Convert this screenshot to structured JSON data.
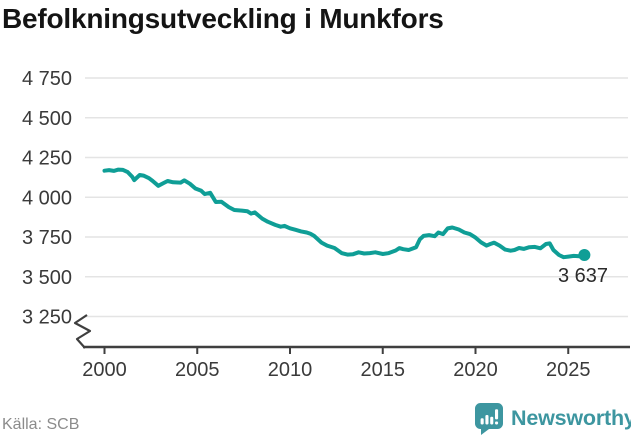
{
  "title": "Befolkningsutveckling i Munkfors",
  "source": "Källa: SCB",
  "branding": {
    "name": "Newsworthy",
    "color": "#3d96a0"
  },
  "chart_data": {
    "type": "line",
    "title": "Befolkningsutveckling i Munkfors",
    "series_name": "Befolkning i Munkfors",
    "line_color": "#0f9e96",
    "grid": true,
    "axis_break": true,
    "xlim": [
      2000,
      2026.8
    ],
    "ylim_visible": [
      3250,
      4750
    ],
    "x_ticks": [
      2000,
      2005,
      2010,
      2015,
      2020,
      2025
    ],
    "x_tick_labels": [
      "2000",
      "2005",
      "2010",
      "2015",
      "2020",
      "2025"
    ],
    "y_ticks": [
      4750,
      4500,
      4250,
      4000,
      3750,
      3500,
      3250
    ],
    "y_tick_labels": [
      "4 750",
      "4 500",
      "4 250",
      "4 000",
      "3 750",
      "3 500",
      "3 250"
    ],
    "end_label": "3 637",
    "end_value": 3637,
    "points": [
      [
        2000.0,
        4167
      ],
      [
        2000.25,
        4171
      ],
      [
        2000.5,
        4166
      ],
      [
        2000.75,
        4174
      ],
      [
        2001.0,
        4172
      ],
      [
        2001.25,
        4158
      ],
      [
        2001.5,
        4128
      ],
      [
        2001.6,
        4108
      ],
      [
        2001.9,
        4140
      ],
      [
        2002.1,
        4136
      ],
      [
        2002.4,
        4120
      ],
      [
        2002.6,
        4102
      ],
      [
        2002.9,
        4072
      ],
      [
        2003.2,
        4090
      ],
      [
        2003.4,
        4102
      ],
      [
        2003.7,
        4094
      ],
      [
        2004.1,
        4092
      ],
      [
        2004.3,
        4106
      ],
      [
        2004.6,
        4085
      ],
      [
        2004.9,
        4055
      ],
      [
        2005.2,
        4042
      ],
      [
        2005.4,
        4020
      ],
      [
        2005.7,
        4028
      ],
      [
        2006.0,
        3970
      ],
      [
        2006.3,
        3972
      ],
      [
        2006.7,
        3938
      ],
      [
        2007.0,
        3920
      ],
      [
        2007.4,
        3916
      ],
      [
        2007.7,
        3912
      ],
      [
        2007.9,
        3897
      ],
      [
        2008.1,
        3905
      ],
      [
        2008.3,
        3885
      ],
      [
        2008.5,
        3866
      ],
      [
        2008.8,
        3846
      ],
      [
        2009.2,
        3826
      ],
      [
        2009.5,
        3815
      ],
      [
        2009.7,
        3820
      ],
      [
        2010.0,
        3805
      ],
      [
        2010.3,
        3795
      ],
      [
        2010.6,
        3785
      ],
      [
        2010.9,
        3778
      ],
      [
        2011.1,
        3770
      ],
      [
        2011.3,
        3757
      ],
      [
        2011.7,
        3715
      ],
      [
        2012.0,
        3696
      ],
      [
        2012.4,
        3681
      ],
      [
        2012.8,
        3648
      ],
      [
        2013.1,
        3639
      ],
      [
        2013.4,
        3642
      ],
      [
        2013.7,
        3654
      ],
      [
        2014.0,
        3646
      ],
      [
        2014.3,
        3649
      ],
      [
        2014.6,
        3654
      ],
      [
        2015.0,
        3643
      ],
      [
        2015.3,
        3648
      ],
      [
        2015.7,
        3665
      ],
      [
        2015.9,
        3680
      ],
      [
        2016.1,
        3673
      ],
      [
        2016.4,
        3668
      ],
      [
        2016.8,
        3686
      ],
      [
        2017.0,
        3736
      ],
      [
        2017.2,
        3757
      ],
      [
        2017.5,
        3762
      ],
      [
        2017.8,
        3755
      ],
      [
        2018.0,
        3778
      ],
      [
        2018.25,
        3768
      ],
      [
        2018.5,
        3804
      ],
      [
        2018.75,
        3810
      ],
      [
        2019.1,
        3797
      ],
      [
        2019.4,
        3778
      ],
      [
        2019.7,
        3768
      ],
      [
        2020.0,
        3746
      ],
      [
        2020.3,
        3716
      ],
      [
        2020.6,
        3696
      ],
      [
        2020.8,
        3706
      ],
      [
        2021.0,
        3714
      ],
      [
        2021.3,
        3696
      ],
      [
        2021.6,
        3671
      ],
      [
        2021.9,
        3664
      ],
      [
        2022.1,
        3668
      ],
      [
        2022.35,
        3681
      ],
      [
        2022.6,
        3675
      ],
      [
        2022.9,
        3686
      ],
      [
        2023.2,
        3688
      ],
      [
        2023.5,
        3679
      ],
      [
        2023.8,
        3706
      ],
      [
        2024.0,
        3710
      ],
      [
        2024.2,
        3668
      ],
      [
        2024.5,
        3637
      ],
      [
        2024.75,
        3623
      ],
      [
        2025.0,
        3627
      ],
      [
        2025.3,
        3631
      ],
      [
        2025.6,
        3629
      ],
      [
        2025.87,
        3637
      ]
    ]
  }
}
